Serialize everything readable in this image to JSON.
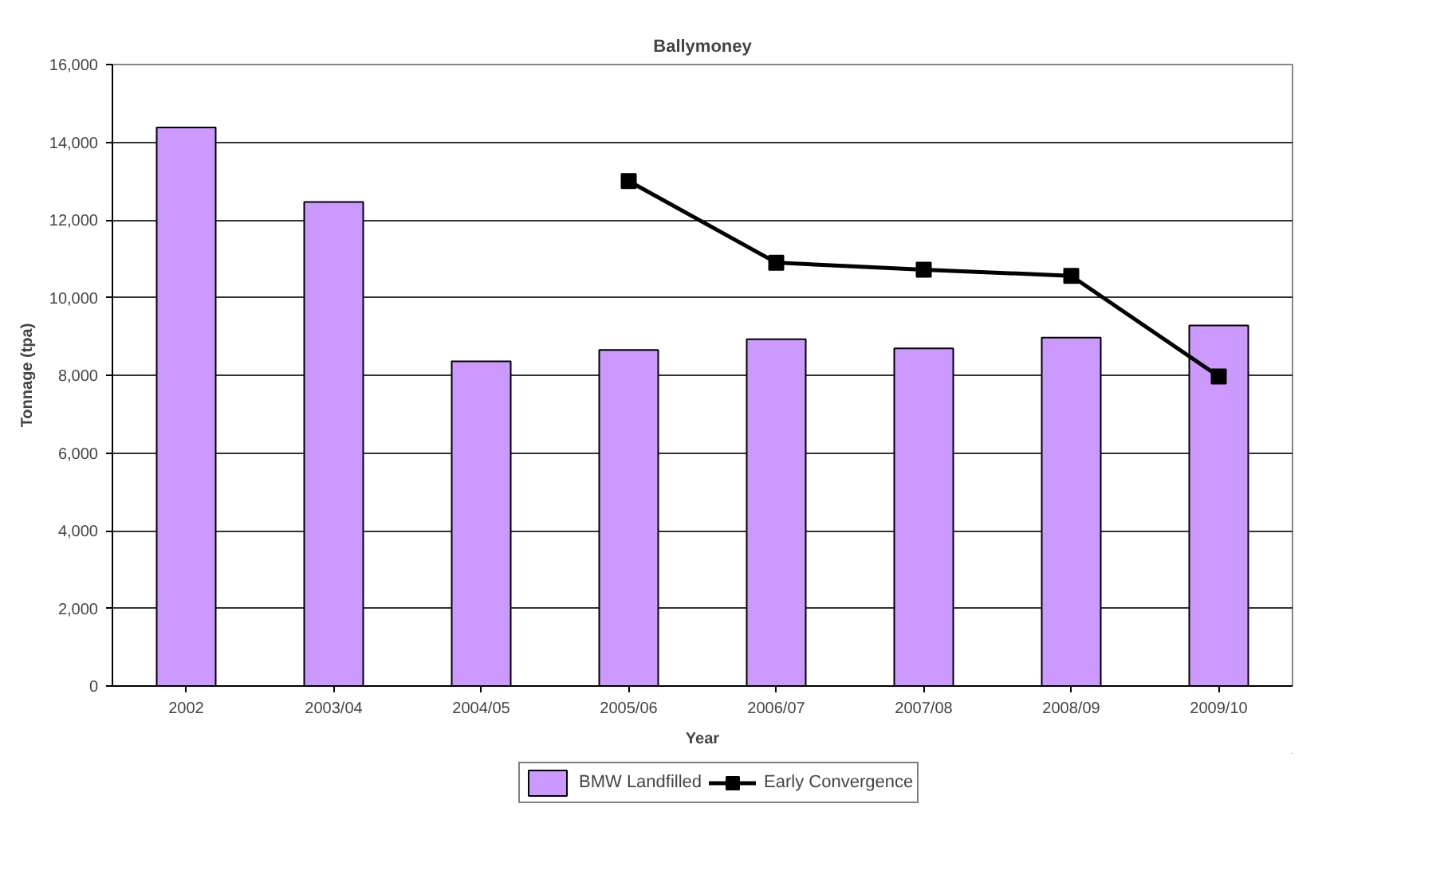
{
  "chart_data": {
    "type": "bar",
    "title": "Ballymoney",
    "xlabel": "Year",
    "ylabel": "Tonnage (tpa)",
    "categories": [
      "2002",
      "2003/04",
      "2004/05",
      "2005/06",
      "2006/07",
      "2007/08",
      "2008/09",
      "2009/10"
    ],
    "series": [
      {
        "name": "BMW Landfilled",
        "color": "#cc99ff",
        "values": [
          14380,
          12460,
          8360,
          8650,
          8930,
          8690,
          8970,
          9280
        ]
      },
      {
        "name": "Early Convergence",
        "type": "line",
        "color": "#000000",
        "marker": "square",
        "values": [
          null,
          null,
          null,
          13000,
          10900,
          10720,
          10560,
          7970
        ]
      }
    ],
    "ylim": [
      0,
      16000
    ],
    "yticks": [
      {
        "value": 0,
        "label": "0"
      },
      {
        "value": 2000,
        "label": "2,000"
      },
      {
        "value": 4000,
        "label": "4,000"
      },
      {
        "value": 6000,
        "label": "6,000"
      },
      {
        "value": 8000,
        "label": "8,000"
      },
      {
        "value": 10000,
        "label": "10,000"
      },
      {
        "value": 12000,
        "label": "12,000"
      },
      {
        "value": 14000,
        "label": "14,000"
      },
      {
        "value": 16000,
        "label": "16,000"
      }
    ],
    "grid": "y",
    "legend": "bottom"
  }
}
